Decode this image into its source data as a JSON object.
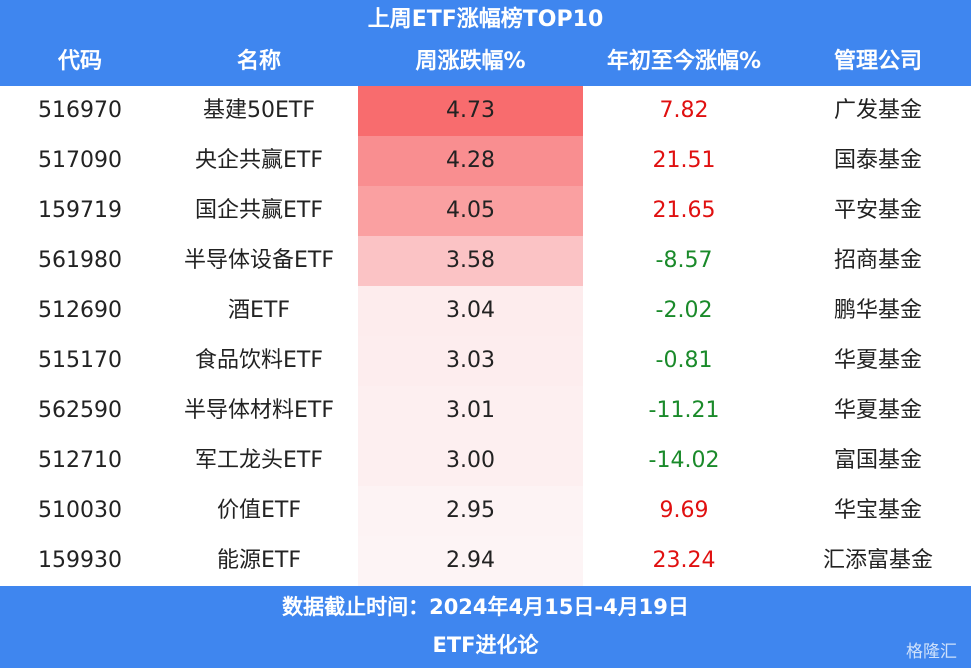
{
  "header": {
    "title": "上周ETF涨幅榜TOP10"
  },
  "table": {
    "columns": [
      "代码",
      "名称",
      "周涨跌幅%",
      "年初至今涨幅%",
      "管理公司"
    ],
    "rows": [
      [
        "516970",
        "基建50ETF",
        "4.73",
        "7.82",
        "广发基金"
      ],
      [
        "517090",
        "央企共赢ETF",
        "4.28",
        "21.51",
        "国泰基金"
      ],
      [
        "159719",
        "国企共赢ETF",
        "4.05",
        "21.65",
        "平安基金"
      ],
      [
        "561980",
        "半导体设备ETF",
        "3.58",
        "-8.57",
        "招商基金"
      ],
      [
        "512690",
        "酒ETF",
        "3.04",
        "-2.02",
        "鹏华基金"
      ],
      [
        "515170",
        "食品饮料ETF",
        "3.03",
        "-0.81",
        "华夏基金"
      ],
      [
        "562590",
        "半导体材料ETF",
        "3.01",
        "-11.21",
        "华夏基金"
      ],
      [
        "512710",
        "军工龙头ETF",
        "3.00",
        "-14.02",
        "富国基金"
      ],
      [
        "510030",
        "价值ETF",
        "2.95",
        "9.69",
        "华宝基金"
      ],
      [
        "159930",
        "能源ETF",
        "2.94",
        "23.24",
        "汇添富基金"
      ]
    ]
  },
  "footer": {
    "note": "数据截止时间：2024年4月15日-4月19日",
    "source": "ETF进化论",
    "watermark": "格隆汇"
  }
}
